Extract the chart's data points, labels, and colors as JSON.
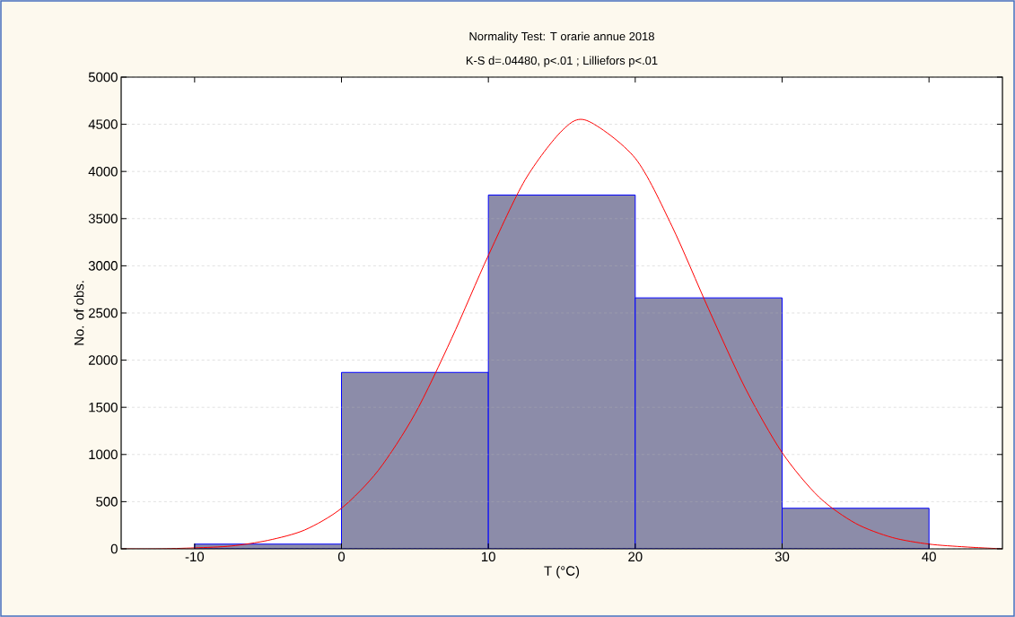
{
  "chart_data": {
    "type": "histogram",
    "title": "Normality Test: T orarie annue 2018",
    "subtitle": "K-S d=.04480, p<.01 ; Lilliefors p<.01",
    "xlabel": "T (°C)",
    "ylabel": "No. of obs.",
    "series": [
      {
        "color": "#0000ff",
        "bins": [
          -10,
          0,
          10,
          20,
          30,
          40
        ],
        "values": [
          50,
          1870,
          3750,
          2660,
          430
        ]
      },
      {
        "type": "line",
        "color": "#ff0000",
        "x": [
          -15,
          -12.5,
          -10,
          -7.5,
          -5,
          -2.5,
          0,
          2.5,
          5,
          7.5,
          10,
          12.5,
          15,
          16.7,
          20,
          22.5,
          25,
          27.5,
          30,
          32.5,
          35,
          37.5,
          40,
          42.5,
          45
        ],
        "values": [
          0,
          0,
          10,
          30,
          90,
          200,
          430,
          830,
          1430,
          2230,
          3110,
          3910,
          4430,
          4540,
          4140,
          3420,
          2540,
          1700,
          1020,
          550,
          270,
          120,
          50,
          20,
          0
        ]
      }
    ],
    "xlim": [
      -15,
      45
    ],
    "xticks": [
      -10,
      0,
      10,
      20,
      30,
      40
    ],
    "ylim": [
      0,
      5000
    ],
    "yticks": [
      0,
      500,
      1000,
      1500,
      2000,
      2500,
      3000,
      3500,
      4000,
      4500,
      5000
    ],
    "grid": "y"
  }
}
